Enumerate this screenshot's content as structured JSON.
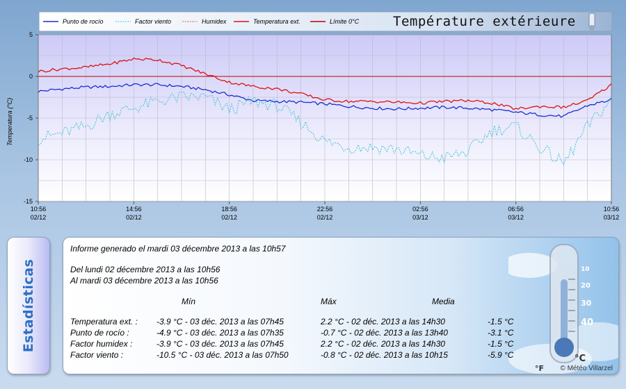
{
  "chart_data": {
    "type": "line",
    "title": "Température extérieure",
    "ylabel": "Temperatura (°C)",
    "ylim": [
      -15,
      5
    ],
    "yticks": [
      "5",
      "0",
      "-5",
      "-10",
      "-15"
    ],
    "xlim": [
      "02/12 10:56",
      "03/12 10:56"
    ],
    "xticks": [
      {
        "time": "10:56",
        "date": "02/12"
      },
      {
        "time": "14:56",
        "date": "02/12"
      },
      {
        "time": "18:56",
        "date": "02/12"
      },
      {
        "time": "22:56",
        "date": "02/12"
      },
      {
        "time": "02:56",
        "date": "03/12"
      },
      {
        "time": "06:56",
        "date": "03/12"
      },
      {
        "time": "10:56",
        "date": "03/12"
      }
    ],
    "x_hours": [
      0,
      1,
      2,
      3,
      4,
      5,
      6,
      7,
      8,
      9,
      10,
      11,
      12,
      13,
      14,
      15,
      16,
      17,
      18,
      19,
      20,
      21,
      22,
      23,
      24
    ],
    "grid": true,
    "legend_position": "top",
    "series": [
      {
        "name": "Punto de rocío",
        "color": "#1a2fd0",
        "style": "solid",
        "values": [
          -1.8,
          -1.5,
          -1.3,
          -1.2,
          -1.0,
          -1.0,
          -1.2,
          -1.6,
          -2.2,
          -2.9,
          -3.0,
          -3.1,
          -3.3,
          -3.6,
          -3.8,
          -3.9,
          -3.8,
          -3.7,
          -3.8,
          -4.0,
          -4.3,
          -4.6,
          -4.8,
          -3.5,
          -2.8
        ]
      },
      {
        "name": "Factor viento",
        "color": "#3fc3d6",
        "style": "dotted",
        "values": [
          -7.5,
          -6.8,
          -6.0,
          -4.5,
          -3.8,
          -3.0,
          -2.5,
          -2.5,
          -4.0,
          -3.0,
          -3.5,
          -5.5,
          -7.8,
          -8.5,
          -8.5,
          -8.7,
          -9.5,
          -9.8,
          -9.0,
          -6.5,
          -6.0,
          -8.5,
          -10.5,
          -6.0,
          -2.8
        ]
      },
      {
        "name": "Humidex",
        "color": "#e85050",
        "style": "dotted",
        "values": []
      },
      {
        "name": "Temperatura ext.",
        "color": "#e01010",
        "style": "solid",
        "values": [
          0.6,
          0.9,
          1.1,
          1.5,
          2.1,
          2.0,
          1.3,
          0.3,
          -0.7,
          -1.2,
          -1.5,
          -2.1,
          -2.8,
          -3.0,
          -3.0,
          -3.1,
          -3.2,
          -3.0,
          -2.9,
          -3.2,
          -3.9,
          -3.6,
          -3.7,
          -2.9,
          -1.0
        ]
      },
      {
        "name": "Límite 0°C",
        "color": "#c00000",
        "style": "solid",
        "values": [
          0,
          0,
          0,
          0,
          0,
          0,
          0,
          0,
          0,
          0,
          0,
          0,
          0,
          0,
          0,
          0,
          0,
          0,
          0,
          0,
          0,
          0,
          0,
          0,
          0
        ]
      }
    ]
  },
  "stats": {
    "side_title": "Estadísticas",
    "generated": "Informe generado el mardi 03 décembre 2013 a las 10h57",
    "period_from": "Del lundi 02 décembre 2013 a las 10h56",
    "period_to": "Al mardi 03 décembre 2013 a las 10h56",
    "headers": {
      "min": "Mín",
      "max": "Máx",
      "avg": "Media"
    },
    "rows": [
      {
        "label": "Temperatura ext. :",
        "min": "-3.9 °C - 03 déc. 2013 a las 07h45",
        "max": "2.2 °C - 02 déc. 2013 a las 14h30",
        "avg": "-1.5 °C"
      },
      {
        "label": "Punto de rocío :",
        "min": "-4.9 °C - 03 déc. 2013 a las 07h35",
        "max": "-0.7 °C - 02 déc. 2013 a las 13h40",
        "avg": "-3.1 °C"
      },
      {
        "label": "Factor humidex :",
        "min": "-3.9 °C - 03 déc. 2013 a las 07h45",
        "max": "2.2 °C - 02 déc. 2013 a las 14h30",
        "avg": "-1.5 °C"
      },
      {
        "label": "Factor viento :",
        "min": "-10.5 °C - 03 déc. 2013 a las 07h50",
        "max": "-0.8 °C - 02 déc. 2013 a las 10h15",
        "avg": "-5.9 °C"
      }
    ],
    "copyright": "© Météo Villarzel",
    "thermo_labels": [
      "40",
      "30",
      "20",
      "10",
      "°C",
      "°F"
    ]
  }
}
